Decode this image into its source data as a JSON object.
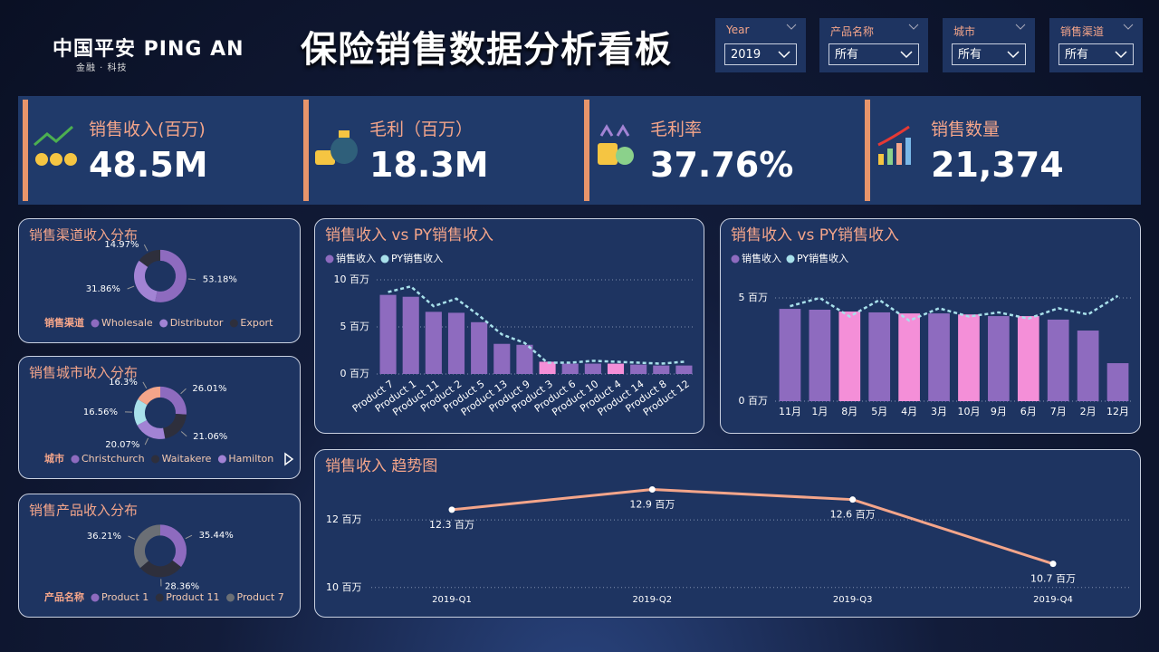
{
  "header": {
    "logo": "中国平安 PING AN",
    "logo_sub": "金融 · 科技",
    "title": "保险销售数据分析看板"
  },
  "filters": [
    {
      "label": "Year",
      "value": "2019"
    },
    {
      "label": "产品名称",
      "value": "所有"
    },
    {
      "label": "城市",
      "value": "所有"
    },
    {
      "label": "销售渠道",
      "value": "所有"
    }
  ],
  "kpis": [
    {
      "label": "销售收入(百万)",
      "value": "48.5M"
    },
    {
      "label": "毛利（百万）",
      "value": "18.3M"
    },
    {
      "label": "毛利率",
      "value": "37.76%"
    },
    {
      "label": "销售数量",
      "value": "21,374"
    }
  ],
  "chart_data": [
    {
      "type": "donut",
      "title": "销售渠道收入分布",
      "legend_title": "销售渠道",
      "categories": [
        "Wholesale",
        "Distributor",
        "Export"
      ],
      "values": [
        53.18,
        31.86,
        14.97
      ],
      "value_labels": [
        "53.18%",
        "31.86%",
        "14.97%"
      ],
      "colors": [
        "#8e6bbf",
        "#a283d4",
        "#2e2f3c"
      ]
    },
    {
      "type": "donut",
      "title": "销售城市收入分布",
      "legend_title": "城市",
      "categories": [
        "Christchurch",
        "Waitakere",
        "Hamilton",
        null,
        null
      ],
      "values": [
        26.01,
        21.06,
        20.07,
        16.56,
        16.3
      ],
      "value_labels": [
        "26.01%",
        "21.06%",
        "20.07%",
        "16.56%",
        "16.3%"
      ],
      "colors": [
        "#8e6bbf",
        "#2e2f3c",
        "#a283d4",
        "#a8e0ea",
        "#f4a58a"
      ]
    },
    {
      "type": "donut",
      "title": "销售产品收入分布",
      "legend_title": "产品名称",
      "categories": [
        "Product 1",
        "Product 11",
        "Product 7"
      ],
      "values": [
        35.44,
        28.36,
        36.21
      ],
      "value_labels": [
        "35.44%",
        "28.36%",
        "36.21%"
      ],
      "colors": [
        "#8e6bbf",
        "#2e2f3c",
        "#6b6f75"
      ]
    },
    {
      "type": "bar",
      "title": "销售收入 vs PY销售收入",
      "categories": [
        "Product 7",
        "Product 1",
        "Product 11",
        "Product 2",
        "Product 5",
        "Product 13",
        "Product 9",
        "Product 3",
        "Product 6",
        "Product 10",
        "Product 4",
        "Product 14",
        "Product 8",
        "Product 12"
      ],
      "series": [
        {
          "name": "销售收入",
          "color": "#8e6bbf",
          "colors": [
            "#8e6bbf",
            "#8e6bbf",
            "#8e6bbf",
            "#8e6bbf",
            "#8e6bbf",
            "#8e6bbf",
            "#8e6bbf",
            "#f48fd8",
            "#8e6bbf",
            "#8e6bbf",
            "#f48fd8",
            "#8e6bbf",
            "#8e6bbf",
            "#8e6bbf"
          ],
          "values": [
            8.4,
            8.2,
            6.6,
            6.5,
            5.5,
            3.2,
            3.1,
            1.3,
            1.1,
            1.1,
            1.1,
            1.0,
            0.9,
            0.9
          ]
        },
        {
          "name": "PY销售收入",
          "color": "#a8e0ea",
          "values": [
            8.7,
            9.3,
            7.2,
            8.0,
            6.2,
            4.2,
            3.3,
            1.2,
            1.2,
            1.4,
            1.3,
            1.2,
            1.1,
            1.3
          ]
        }
      ],
      "ylim": [
        0,
        10
      ],
      "yticks": [
        {
          "value": 0,
          "label": "0 百万"
        },
        {
          "value": 5,
          "label": "5 百万"
        },
        {
          "value": 10,
          "label": "10 百万"
        }
      ],
      "grid": true
    },
    {
      "type": "bar",
      "title": "销售收入 vs PY销售收入",
      "categories": [
        "11月",
        "1月",
        "8月",
        "5月",
        "4月",
        "3月",
        "10月",
        "9月",
        "6月",
        "7月",
        "2月",
        "12月"
      ],
      "series": [
        {
          "name": "销售收入",
          "color": "#8e6bbf",
          "colors": [
            "#8e6bbf",
            "#8e6bbf",
            "#f48fd8",
            "#8e6bbf",
            "#f48fd8",
            "#8e6bbf",
            "#f48fd8",
            "#8e6bbf",
            "#f48fd8",
            "#8e6bbf",
            "#8e6bbf",
            "#8e6bbf"
          ],
          "values": [
            4.47,
            4.43,
            4.34,
            4.3,
            4.25,
            4.25,
            4.2,
            4.12,
            4.12,
            3.95,
            3.42,
            1.84
          ]
        },
        {
          "name": "PY销售收入",
          "color": "#a8e0ea",
          "values": [
            4.6,
            5.0,
            4.1,
            4.9,
            3.9,
            4.5,
            4.1,
            4.3,
            4.0,
            4.5,
            4.2,
            5.1
          ]
        }
      ],
      "ylim": [
        0,
        5.5
      ],
      "yticks": [
        {
          "value": 0,
          "label": "0 百万"
        },
        {
          "value": 5,
          "label": "5 百万"
        }
      ],
      "grid": true
    },
    {
      "type": "line",
      "title": "销售收入 趋势图",
      "categories": [
        "2019-Q1",
        "2019-Q2",
        "2019-Q3",
        "2019-Q4"
      ],
      "values": [
        12.3,
        12.9,
        12.6,
        10.7
      ],
      "value_labels": [
        "12.3 百万",
        "12.9 百万",
        "12.6 百万",
        "10.7 百万"
      ],
      "color": "#f4a58a",
      "ylim": [
        9.7,
        13.1
      ],
      "yticks": [
        {
          "value": 10,
          "label": "10 百万"
        },
        {
          "value": 12,
          "label": "12 百万"
        }
      ],
      "grid": true
    }
  ]
}
